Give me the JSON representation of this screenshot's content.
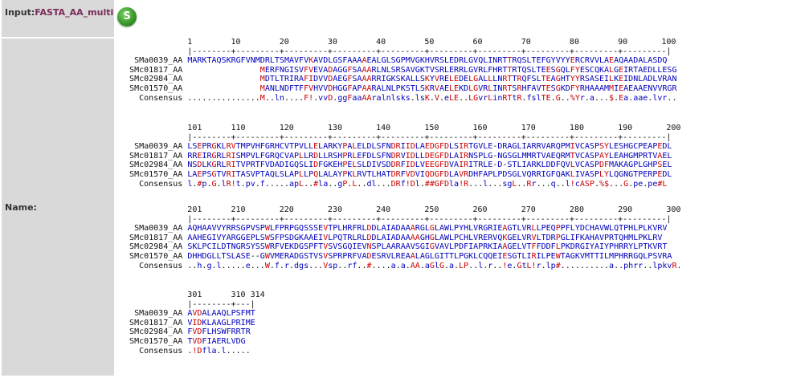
{
  "input": {
    "label": "Input:",
    "value": "FASTA_AA_multi",
    "button_label": "S"
  },
  "name_label": "Name:",
  "sequences": [
    "SMa0039_AA",
    "SMc01817_AA",
    "SMc02984_AA",
    "SMc01570_AA",
    "Consensus"
  ],
  "blocks": [
    {
      "ruler": "1        10        20        30        40        50        60        70        80        90       100",
      "ticks": "|--------+---------+---------+---------+---------+---------+---------+---------+---------+---------|",
      "rows": [
        "MARKTAQSKRGFVNMDRLTSMAVFVKAVDLGSFAAAAEALGLSGPMVGKHVRSLEDRLGVQLINRTTRQSLTEFGYVYYERCRVVLAEAQAADALASDQ",
        "               MERFNGISVFVEVADAGGFSAAARLNLSRSAVGKTVSRLERRLGVRLFHRTTRTQSLTEESGQLFYESCQKALGEIRTAEDLLESG",
        "               MDTLTRIRAFIDVVDAEGFSAAARRIGKSKALLSKYVRELEDELGALLLNRTTRQFSLTEAGHTYYRSASEILKEIDNLADLVRAN",
        "               MANLNDFTFFVHVVDHGGFAPAARALNLPKSTLSKRVAELEKDLGVRLINRTSRHFAVTESGKDFYRHAAAMMIEAEAAENVVRGR",
        "...............M..ln....F!.vvD.ggFaaAAralnlsks.lsK.V.eLE..LGvrLinRTtR.fslTE.G..%Yr.a...$.Ea.aae.lvr.."
      ]
    },
    {
      "ruler": "101      110       120       130       140       150       160       170       180       190       200",
      "ticks": "|--------+---------+---------+---------+---------+---------+---------+---------+---------+---------|",
      "rows": [
        "LSEPRGKLRVTMPVHFGRHCVTPVLLELARKYPALELDLSFNDRIIDLAEDGFDLSIRTGVLE-DRAGLIARRVARQPMIVCASPSYLESHGCPEAPEDL",
        "RREIRGRLRISMPVLFGRQCVAPLLRDLLRSHPRLEFDLSFNDRVIDLLDEGFDLAIRNSPLG-NGSGLMMRTVAEQRMTVCASPAYLEAHGMPRTVAEL",
        "NSDLKGRLRITVPRTFVDADIGQSLIDFGKEHPELSLDIVSDDRFIDLVEEGFDVAIRITRLE-D-STLIARKLDDFQVLVCASPDFMAKAGPLGHPSEL",
        "LAEPSGTVRITASVPTAQLSLAPLLPQLALAYPKLRVTLHATDRFVDVIQDGFDLAVRDHFAPLPDSGLVQRRIGFQAKLIVASPLYLQGNGTPERPEDL",
        "l.#p.G.lR!t.pv.f.....apL..#la..gP.L..dl...DRf!Dl.##GFDla!R...l...sgL..Rr...q..l!cASP.%$...G.pe.pe#L"
      ]
    },
    {
      "ruler": "201      210       220       230       240       250       260       270       280       290       300",
      "ticks": "|--------+---------+---------+---------+---------+---------+---------+---------+---------+---------|",
      "rows": [
        "AQHAAVVYRRSGPVSPWLFPRPGQSSSEVTPLHRFRLDDLAIADAAARGLGLAWLPYHLVRGRIEAGTLVRLLPEQPPFLYDCHAVWLQTPHLPLKVRV",
        "AAHEGIVYARGGEPLSWSFPSDGKAAEIVLPQTRLRLDDLAIADAAAAGHGLAWLPCHLVRERVQKGELVRVLTDRPGLIFKAHAVPRTQHMLPKLRV",
        "SKLPCILDTNGRSYSSWRFVEKDGSPFTVSVSGQIEVNSPLAARAAVSGIGVAVLPDFIAPRKIAAGELVTFFDDFLPKDRGIYAIYPHRRYLPTKVRT",
        "DHHDGLLTSLASE--GWVMERADGSTVSVSPRPRFVADESRVLREAALAGLGITTLPGKLCQQEIESGTLIRILPEWTAGKVMTTILMPHRRGQLPSVRA",
        "..h.g.l.....e...W.f.r.dgs...Vsp..rf..#....a.a.AA.aGlG.a.LP..l.r..!e.GtL!r.lp#..........a..phrr..lpkvR."
      ]
    },
    {
      "ruler": "301      310 314",
      "ticks": "|--------+---|",
      "rows": [
        "AVDALAAQLPSFMT",
        "VIDKLAAGLPRIME",
        "FVDFLHSWFRRTR",
        "TVDFIAERLVDG",
        ".!Dfla.l....."
      ]
    }
  ]
}
